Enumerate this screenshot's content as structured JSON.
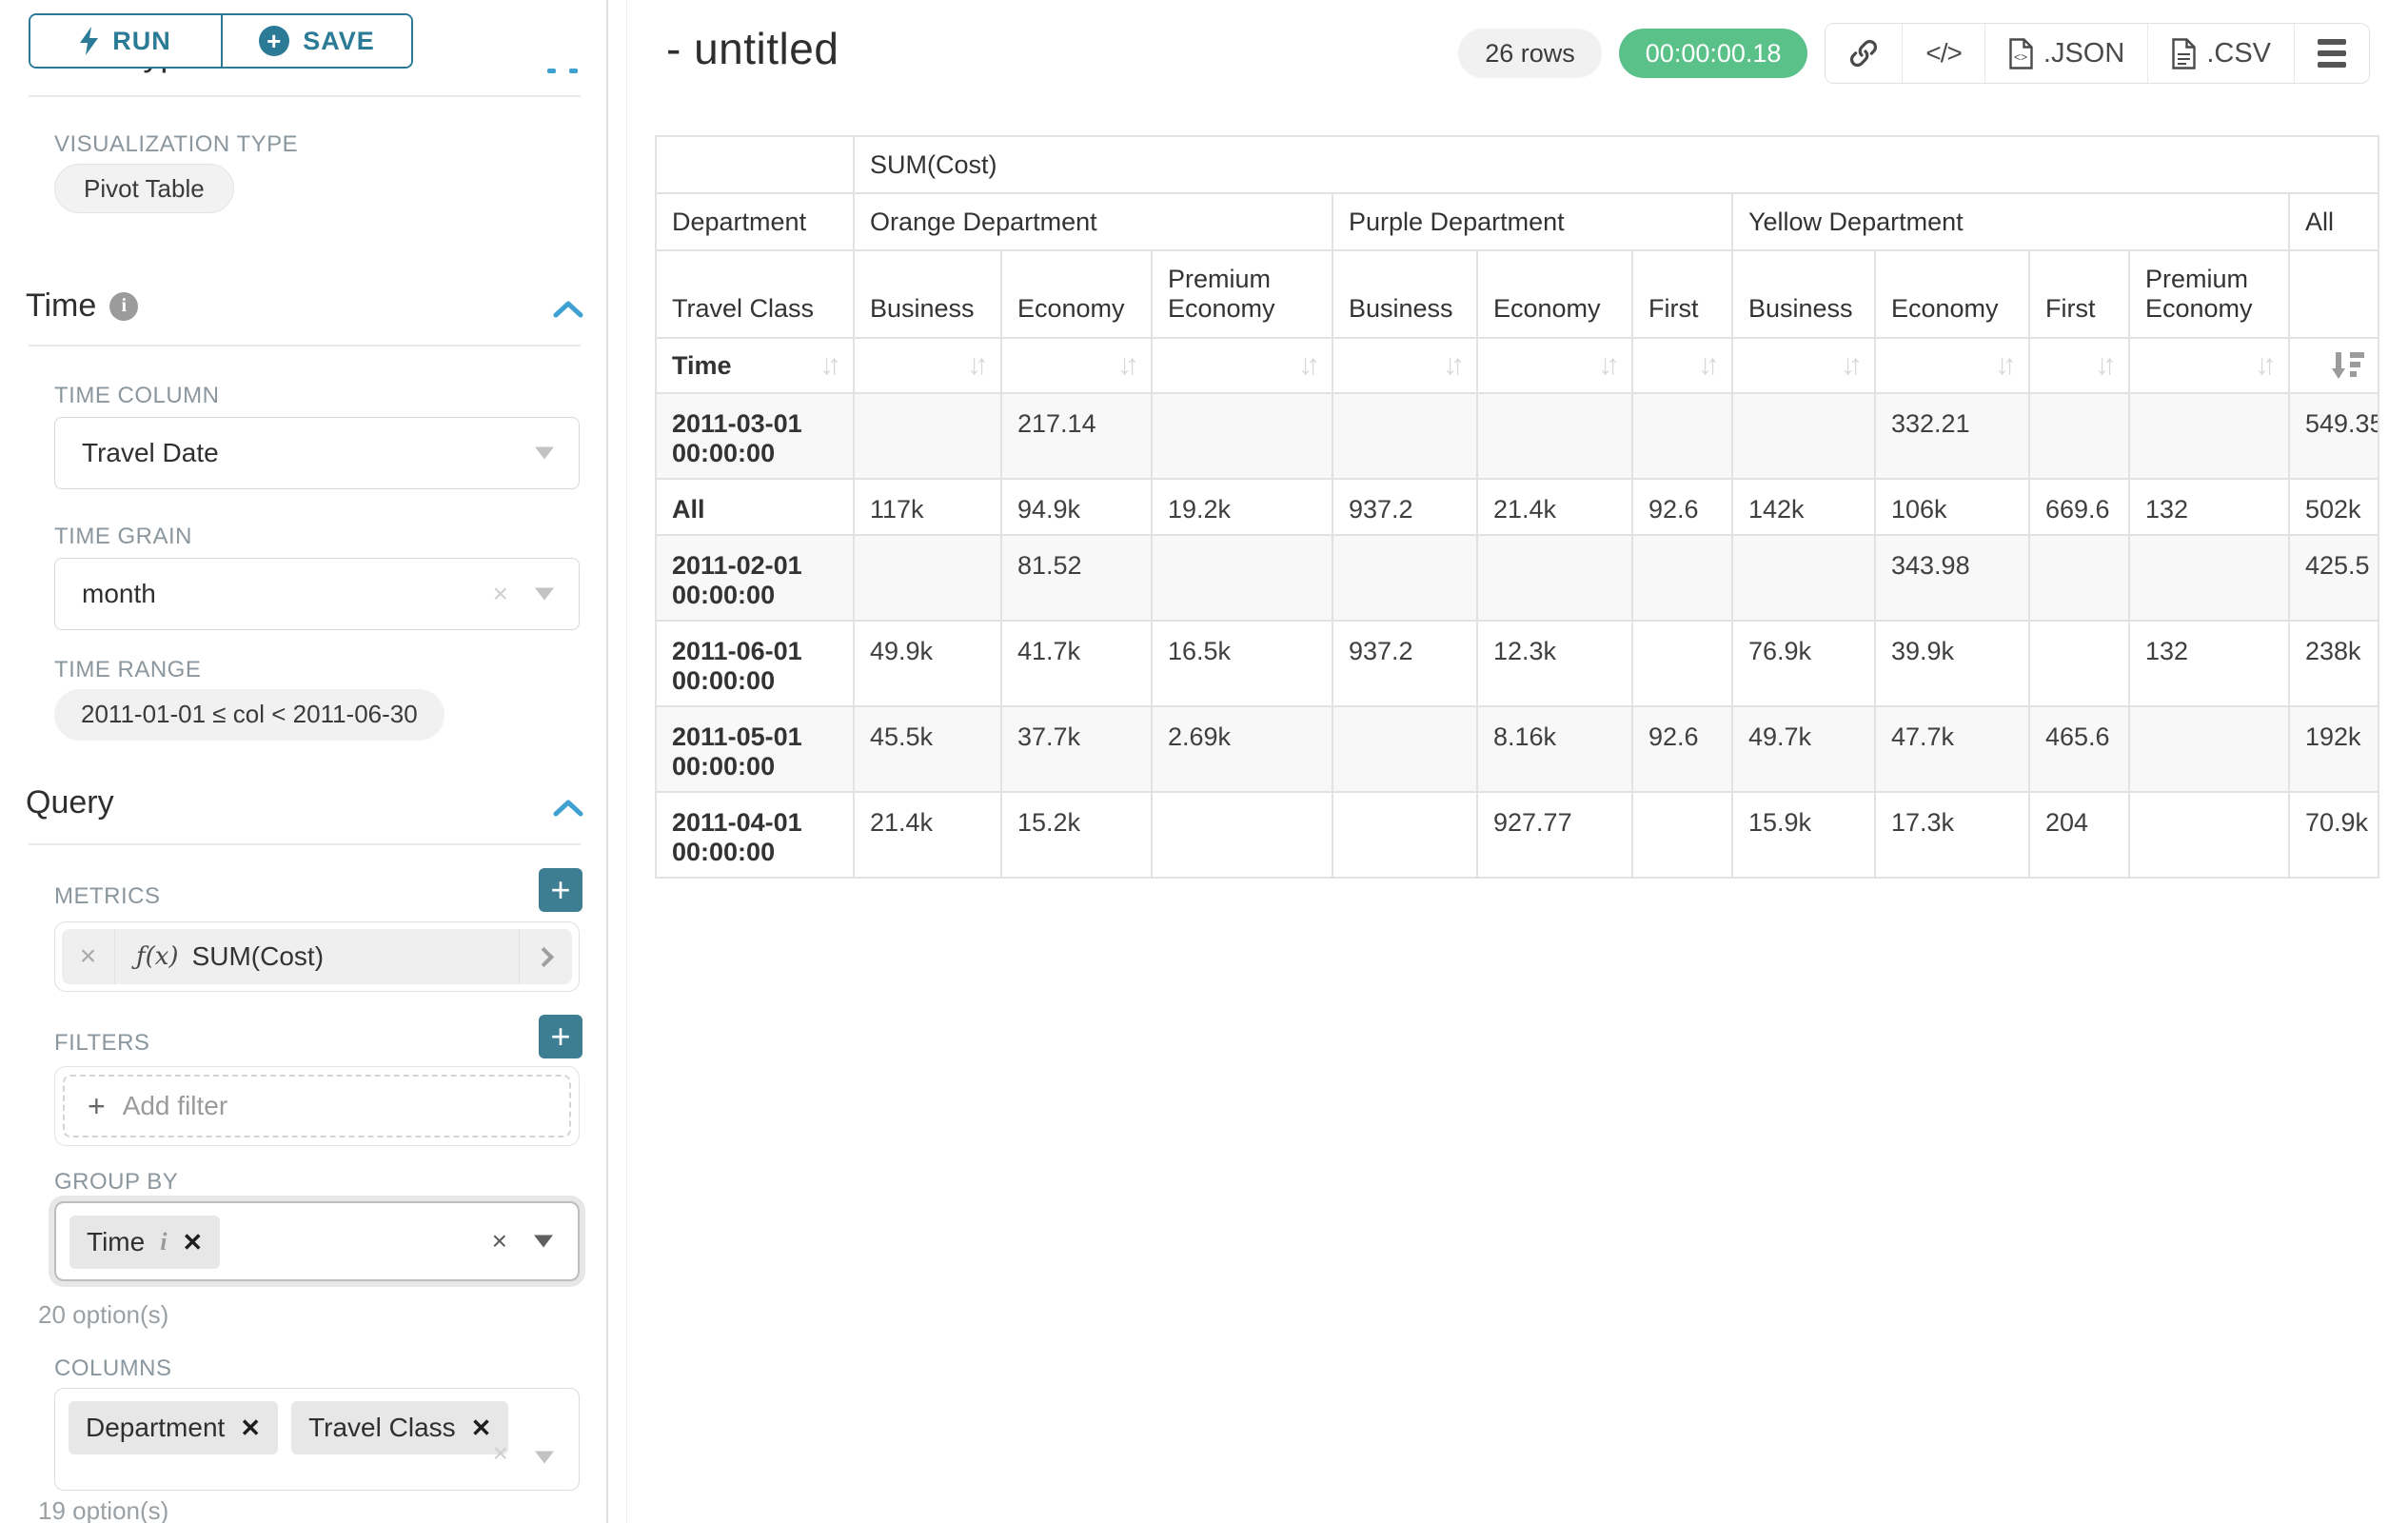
{
  "sidebar": {
    "run_button": "RUN",
    "save_button": "SAVE",
    "chart_type_heading": "Chart Type",
    "visualization_type_label": "VISUALIZATION TYPE",
    "visualization_type_value": "Pivot Table",
    "time_section": {
      "heading": "Time",
      "time_column_label": "TIME COLUMN",
      "time_column_value": "Travel Date",
      "time_grain_label": "TIME GRAIN",
      "time_grain_value": "month",
      "time_range_label": "TIME RANGE",
      "time_range_value": "2011-01-01 ≤ col < 2011-06-30"
    },
    "query_section": {
      "heading": "Query",
      "metrics_label": "METRICS",
      "metric_fx": "ƒ(x)",
      "metric_value": "SUM(Cost)",
      "filters_label": "FILTERS",
      "add_filter_placeholder": "Add filter",
      "group_by_label": "GROUP BY",
      "group_by_items": [
        {
          "label": "Time",
          "has_info": true
        }
      ],
      "group_by_options_hint": "20 option(s)",
      "columns_label": "COLUMNS",
      "columns_items": [
        {
          "label": "Department",
          "has_info": false
        },
        {
          "label": "Travel Class",
          "has_info": false
        }
      ],
      "columns_options_hint": "19 option(s)"
    }
  },
  "header": {
    "title": "- untitled",
    "row_count_badge": "26 rows",
    "query_timer": "00:00:00.18",
    "json_export_label": ".JSON",
    "csv_export_label": ".CSV",
    "code_glyph": "</>"
  },
  "colors": {
    "accent_teal": "#2b7a96",
    "add_button_teal": "#3d7e93",
    "chevron_blue": "#3fa0d2",
    "success_green": "#5ac189",
    "table_border": "#e2e2e2",
    "row_stripe": "#f8f8f8"
  },
  "chart_data": {
    "type": "table",
    "metric_header": "SUM(Cost)",
    "row_axis_label": "Department",
    "row_axis_sublabel": "Travel Class",
    "row_dim_label": "Time",
    "column_groups": [
      {
        "label": "Orange Department",
        "classes": [
          "Business",
          "Economy",
          "Premium Economy"
        ]
      },
      {
        "label": "Purple Department",
        "classes": [
          "Business",
          "Economy",
          "First"
        ]
      },
      {
        "label": "Yellow Department",
        "classes": [
          "Business",
          "Economy",
          "First",
          "Premium Economy"
        ]
      },
      {
        "label": "All",
        "classes": [
          ""
        ]
      }
    ],
    "rows": [
      {
        "label": "2011-03-01 00:00:00",
        "values": [
          "",
          "217.14",
          "",
          "",
          "",
          "",
          "",
          "332.21",
          "",
          "",
          "549.35"
        ]
      },
      {
        "label": "All",
        "values": [
          "117k",
          "94.9k",
          "19.2k",
          "937.2",
          "21.4k",
          "92.6",
          "142k",
          "106k",
          "669.6",
          "132",
          "502k"
        ]
      },
      {
        "label": "2011-02-01 00:00:00",
        "values": [
          "",
          "81.52",
          "",
          "",
          "",
          "",
          "",
          "343.98",
          "",
          "",
          "425.5"
        ]
      },
      {
        "label": "2011-06-01 00:00:00",
        "values": [
          "49.9k",
          "41.7k",
          "16.5k",
          "937.2",
          "12.3k",
          "",
          "76.9k",
          "39.9k",
          "",
          "132",
          "238k"
        ]
      },
      {
        "label": "2011-05-01 00:00:00",
        "values": [
          "45.5k",
          "37.7k",
          "2.69k",
          "",
          "8.16k",
          "92.6",
          "49.7k",
          "47.7k",
          "465.6",
          "",
          "192k"
        ]
      },
      {
        "label": "2011-04-01 00:00:00",
        "values": [
          "21.4k",
          "15.2k",
          "",
          "",
          "927.77",
          "",
          "15.9k",
          "17.3k",
          "204",
          "",
          "70.9k"
        ]
      }
    ],
    "sorted_column": "All",
    "sort_direction": "desc"
  }
}
